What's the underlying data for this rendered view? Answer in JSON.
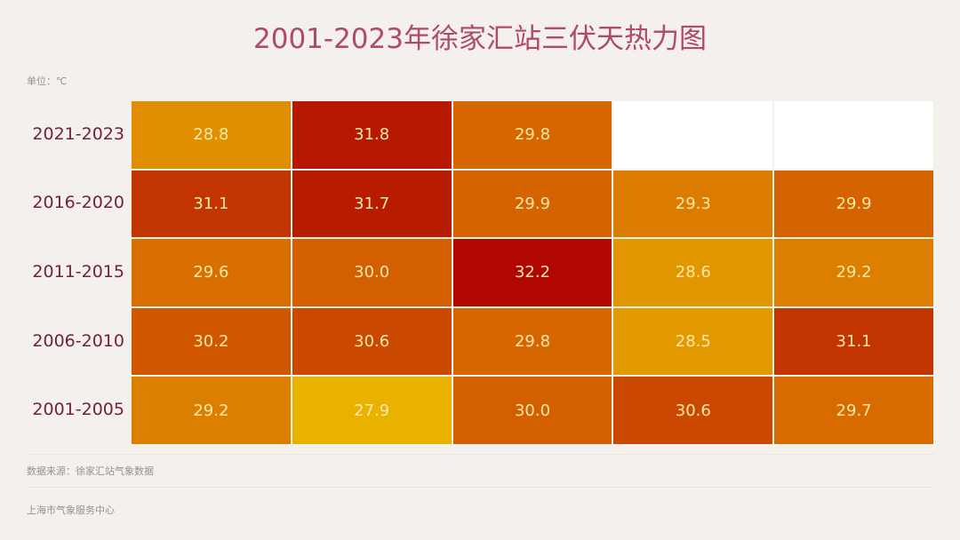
{
  "chart_data": {
    "type": "heatmap",
    "title": "2001-2023年徐家汇站三伏天热力图",
    "unit_label": "单位：℃",
    "rows": [
      "2021-2023",
      "2016-2020",
      "2011-2015",
      "2006-2010",
      "2001-2005"
    ],
    "columns": [
      "",
      "",
      "",
      "",
      ""
    ],
    "values": [
      [
        28.8,
        31.8,
        29.8,
        null,
        null
      ],
      [
        31.1,
        31.7,
        29.9,
        29.3,
        29.9
      ],
      [
        29.6,
        30.0,
        32.2,
        28.6,
        29.2
      ],
      [
        30.2,
        30.6,
        29.8,
        28.5,
        31.1
      ],
      [
        29.2,
        27.9,
        30.0,
        30.6,
        29.7
      ]
    ],
    "color_scale": {
      "low": "#e9b200",
      "mid": "#d66600",
      "high": "#b00800",
      "min": 27.9,
      "max": 32.2
    },
    "empty_color": "#ffffff",
    "label_color": "#fbe7a6"
  },
  "footer": {
    "source": "数据来源：徐家汇站气象数据",
    "org": "上海市气象服务中心"
  }
}
